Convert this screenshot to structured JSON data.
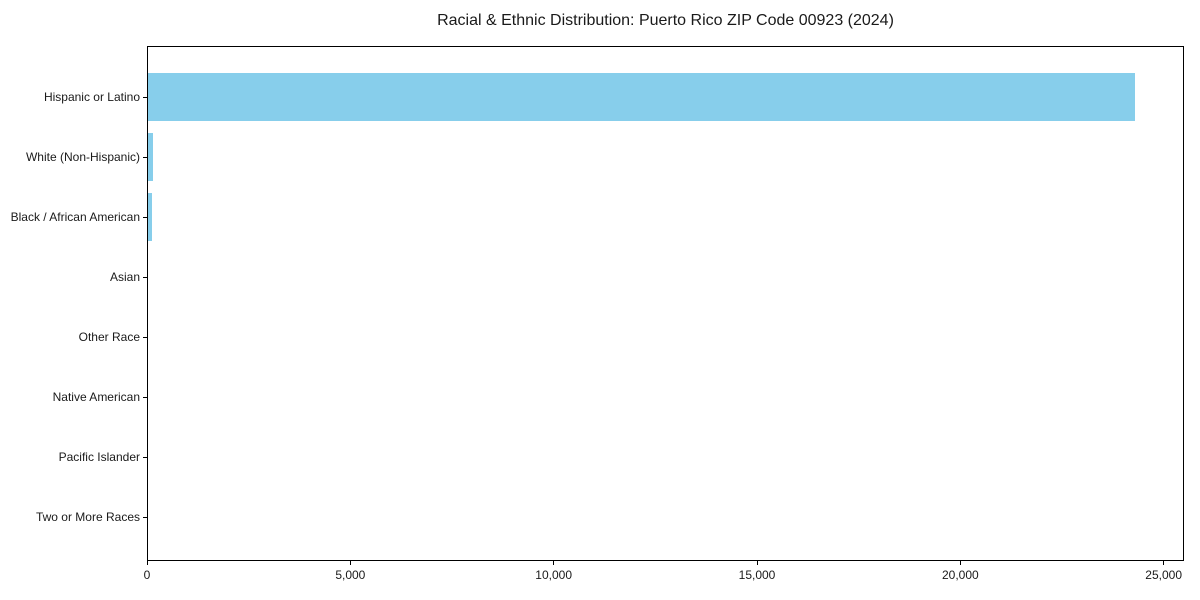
{
  "chart_data": {
    "type": "bar",
    "orientation": "horizontal",
    "title": "Racial & Ethnic Distribution: Puerto Rico ZIP Code 00923 (2024)",
    "categories": [
      "Hispanic or Latino",
      "White (Non-Hispanic)",
      "Black / African American",
      "Asian",
      "Other Race",
      "Native American",
      "Pacific Islander",
      "Two or More Races"
    ],
    "values": [
      24300,
      150,
      120,
      25,
      0,
      0,
      0,
      0
    ],
    "xlabel": "",
    "ylabel": "",
    "xlim": [
      0,
      25500
    ],
    "xticks": [
      0,
      5000,
      10000,
      15000,
      20000,
      25000
    ],
    "xtick_labels": [
      "0",
      "5,000",
      "10,000",
      "15,000",
      "20,000",
      "25,000"
    ],
    "grid": false,
    "legend": null,
    "colors": {
      "bar": "#87CEEB",
      "spine": "#000000",
      "text": "#1a1a1a",
      "background": "#ffffff"
    }
  }
}
